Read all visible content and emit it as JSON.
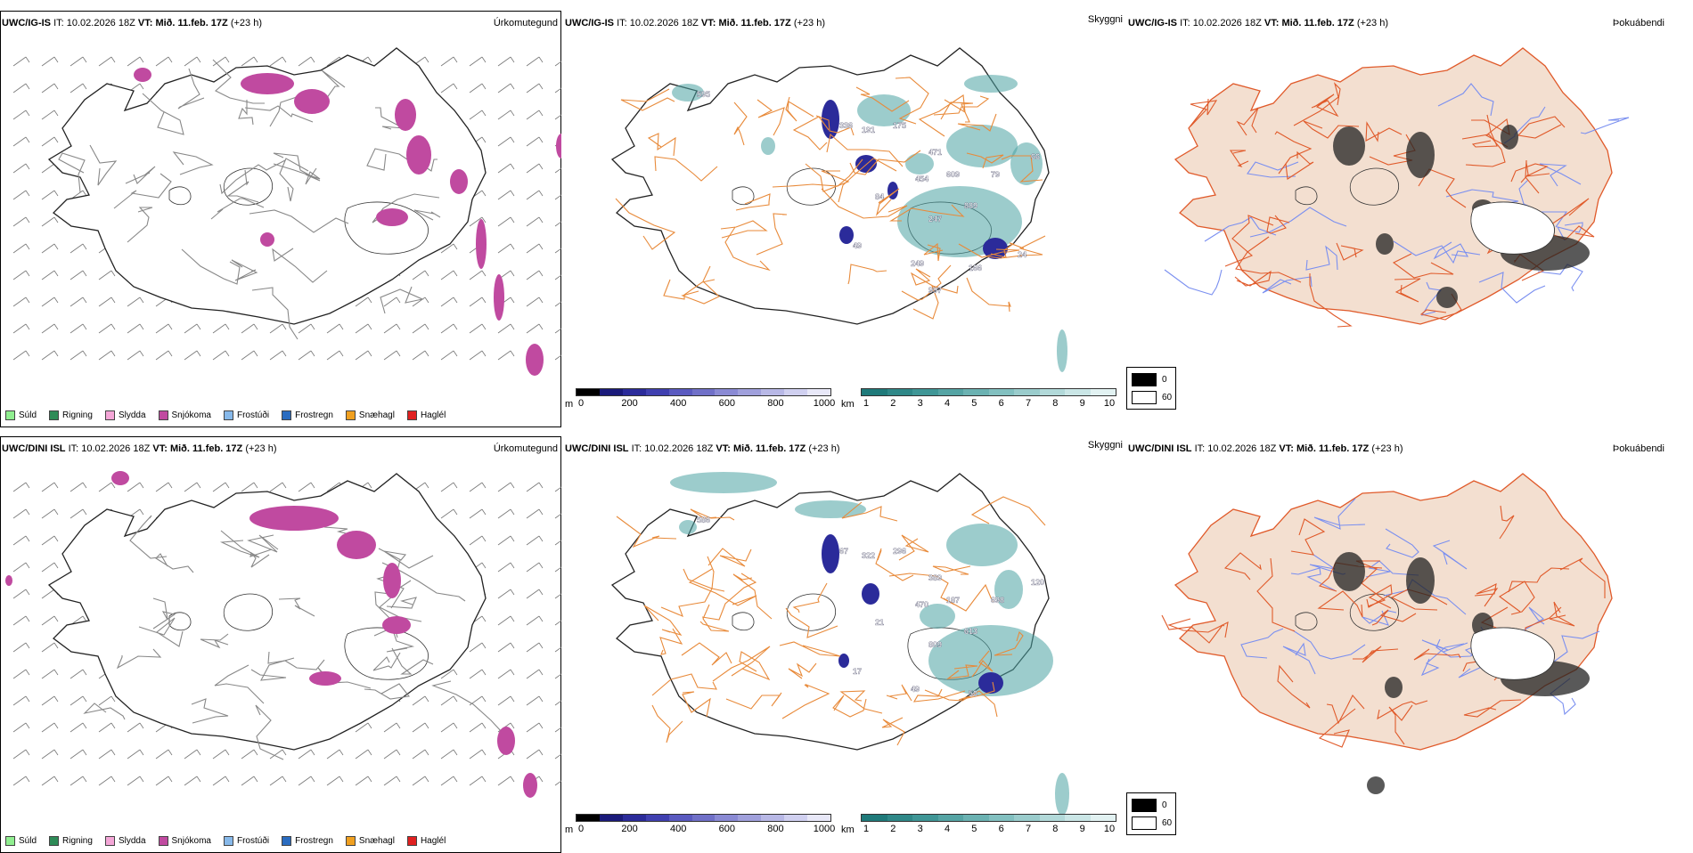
{
  "rows": [
    {
      "model": "UWC/IG-IS",
      "it_label": "IT:",
      "it_value": "10.02.2026 18Z",
      "vt_label": "VT:",
      "vt_value": "Mið. 11.feb. 17Z",
      "lead": "(+23 h)",
      "visibility_labels": [
        "595",
        "336",
        "191",
        "175",
        "471",
        "609",
        "454",
        "84",
        "889",
        "247",
        "66",
        "79",
        "49",
        "249",
        "166",
        "997",
        "24"
      ]
    },
    {
      "model": "UWC/DINI ISL",
      "it_label": "IT:",
      "it_value": "10.02.2026 18Z",
      "vt_label": "VT:",
      "vt_value": "Mið. 11.feb. 17Z",
      "lead": "(+23 h)",
      "visibility_labels": [
        "586",
        "67",
        "322",
        "296",
        "389",
        "187",
        "470",
        "21",
        "613",
        "809",
        "120",
        "698",
        "17",
        "49",
        "50"
      ]
    }
  ],
  "panel_titles": {
    "precip_type": "Úrkomutegund",
    "visibility": "Skyggni",
    "fog_index": "Þokuábendi"
  },
  "precip_legend": [
    {
      "label": "Súld",
      "color": "#90ee90"
    },
    {
      "label": "Rigning",
      "color": "#2e8b57"
    },
    {
      "label": "Slydda",
      "color": "#f4a6d7"
    },
    {
      "label": "Snjókoma",
      "color": "#c04aa0"
    },
    {
      "label": "Frostúði",
      "color": "#87b9ea"
    },
    {
      "label": "Frostregn",
      "color": "#2a6cc0"
    },
    {
      "label": "Snæhagl",
      "color": "#f0a020"
    },
    {
      "label": "Haglél",
      "color": "#e02020"
    }
  ],
  "ceiling_bar": {
    "unit": "m",
    "ticks": [
      "0",
      "200",
      "400",
      "600",
      "800",
      "1000"
    ],
    "colors": [
      "#000000",
      "#1a1a7a",
      "#2b2b9a",
      "#4040b0",
      "#5a5ac0",
      "#7070c8",
      "#8a8ad4",
      "#a0a0dc",
      "#b8b8e6",
      "#d0d0f0",
      "#e8e8f8"
    ]
  },
  "vis_bar": {
    "unit": "km",
    "ticks": [
      "1",
      "2",
      "3",
      "4",
      "5",
      "6",
      "7",
      "8",
      "9",
      "10"
    ],
    "colors": [
      "#1f7a7a",
      "#2f8888",
      "#3f9696",
      "#55a4a4",
      "#6bb2b2",
      "#82c0c0",
      "#9acccc",
      "#b2d9d9",
      "#cae6e6",
      "#e2f2f2"
    ]
  },
  "fog_scale": {
    "high": "0",
    "low": "60",
    "high_color": "#000000",
    "low_color": "#ffffff"
  },
  "colors": {
    "snow": "#c04aa0",
    "vis_teal": "#4aa3a3",
    "low_cloud": "#2b2b9a",
    "roads": "#e88a3a",
    "land_fog": "#f3dfd0",
    "rivers": "#7a8ff0",
    "roads_fog": "#e05a2a"
  }
}
